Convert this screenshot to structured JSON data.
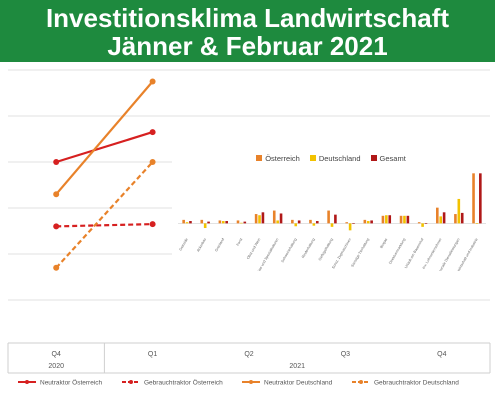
{
  "banner": {
    "line1": "Investitionsklima Landwirtschaft",
    "line2": "Jänner & Februar 2021"
  },
  "colors": {
    "banner_bg": "#1e8a3e",
    "red": "#d62020",
    "orange": "#e8822a",
    "yellow": "#f2c200",
    "dark_red": "#b01818"
  },
  "chart_data": [
    {
      "type": "line",
      "x": [
        "Q4",
        "Q1",
        "Q2",
        "Q3",
        "Q4"
      ],
      "x_group_labels": [
        "2020",
        "2021"
      ],
      "ylim": [
        0,
        100
      ],
      "grid": true,
      "legend_position": "bottom",
      "series": [
        {
          "name": "Neutraktor Österreich",
          "style": "solid",
          "color": "#d62020",
          "values": [
            60,
            73,
            null,
            null,
            null
          ]
        },
        {
          "name": "Gebrauchtraktor Österreich",
          "style": "dashed",
          "color": "#d62020",
          "values": [
            32,
            33,
            null,
            null,
            null
          ]
        },
        {
          "name": "Neutraktor Deutschland",
          "style": "solid",
          "color": "#e8822a",
          "values": [
            46,
            95,
            null,
            null,
            null
          ]
        },
        {
          "name": "Gebrauchtraktor Deutschland",
          "style": "dashed",
          "color": "#e8822a",
          "values": [
            14,
            60,
            null,
            null,
            null
          ]
        }
      ]
    },
    {
      "type": "bar",
      "legend_position": "top",
      "ylim": [
        -2,
        9
      ],
      "categories": [
        "Getreide",
        "Ackerbau",
        "Grünland",
        "Forst",
        "Obst und Wein",
        "Gemüse und Spezialkulturen",
        "Schweinehaltung",
        "Rinderhaltung",
        "Geflügelhaltung",
        "Sonst. Zugmaschinen",
        "Sonstige Tierhaltung",
        "Biogas",
        "Direktvermarktung",
        "Urlaub am Bauernhof",
        "Inv. Lohnunternehmer",
        "Kommunale Dienstleistungen",
        "Bauwirtschaft und Industrie"
      ],
      "series": [
        {
          "name": "Österreich",
          "color": "#e8822a",
          "values": [
            0.6,
            0.6,
            0.5,
            0.5,
            1.6,
            2.2,
            0.6,
            0.6,
            2.2,
            0.2,
            0.6,
            1.3,
            1.3,
            0.2,
            2.7,
            1.6,
            8.6
          ]
        },
        {
          "name": "Deutschland",
          "color": "#f2c200",
          "values": [
            0.2,
            -0.8,
            0.4,
            0.1,
            1.4,
            0.5,
            -0.5,
            -0.4,
            -0.6,
            -1.2,
            0.4,
            1.4,
            1.3,
            -0.6,
            1.2,
            4.2,
            0.0
          ]
        },
        {
          "name": "Gesamt",
          "color": "#b01818",
          "values": [
            0.4,
            0.3,
            0.4,
            0.3,
            1.9,
            1.7,
            0.5,
            0.4,
            1.5,
            -0.1,
            0.5,
            1.4,
            1.3,
            -0.1,
            1.9,
            1.8,
            8.6
          ]
        }
      ]
    }
  ]
}
